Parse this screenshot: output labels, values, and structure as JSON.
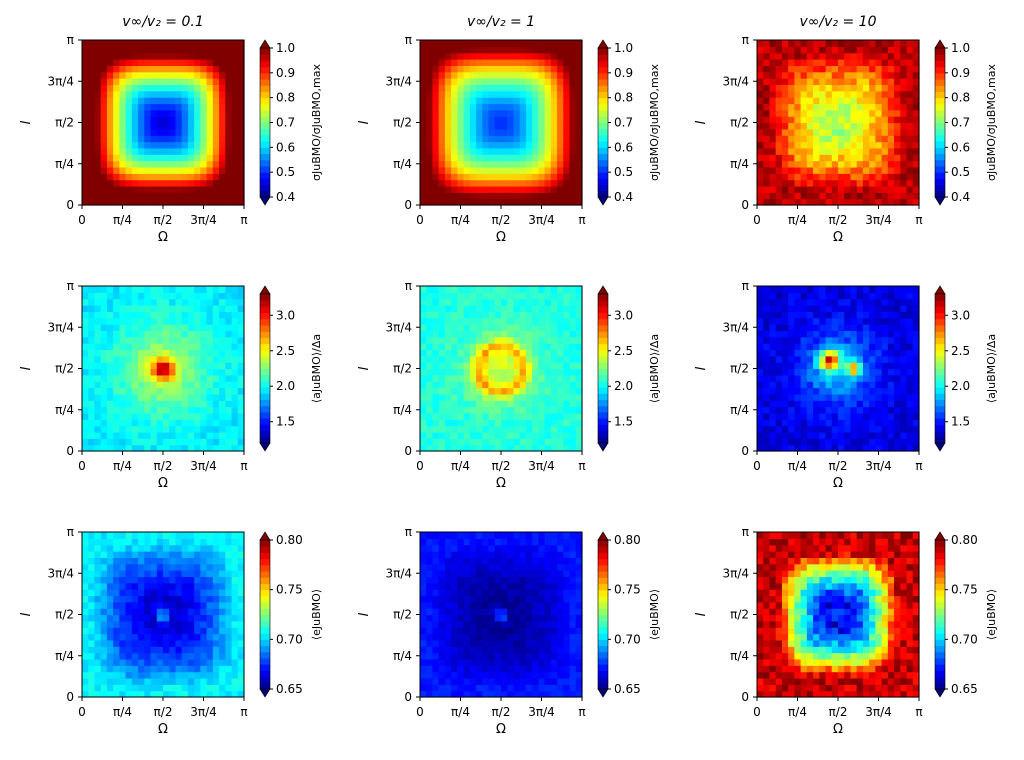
{
  "chart_data": [
    {
      "type": "heatmap",
      "panel": "r0c0",
      "title": "v∞/v₂ = 0.1",
      "xlabel": "Ω",
      "ylabel": "I",
      "xlim": [
        0,
        3.14159
      ],
      "ylim": [
        0,
        3.14159
      ],
      "xticks": [
        "0",
        "π/4",
        "π/2",
        "3π/4",
        "π"
      ],
      "yticks": [
        "0",
        "π/4",
        "π/2",
        "3π/4",
        "π"
      ],
      "colormap": "jet",
      "colorbar": {
        "label": "σJuBMO/σJuBMO,max",
        "min": 0.4,
        "max": 1.0,
        "ticks": [
          "0.4",
          "0.5",
          "0.6",
          "0.7",
          "0.8",
          "0.9",
          "1.0"
        ]
      },
      "pattern": {
        "kind": "radial",
        "center_value": 0.45,
        "edge_value": 1.0,
        "radius": 0.82,
        "noise": 0.0
      }
    },
    {
      "type": "heatmap",
      "panel": "r0c1",
      "title": "v∞/v₂ = 1",
      "xlabel": "Ω",
      "ylabel": "I",
      "xlim": [
        0,
        3.14159
      ],
      "ylim": [
        0,
        3.14159
      ],
      "xticks": [
        "0",
        "π/4",
        "π/2",
        "3π/4",
        "π"
      ],
      "yticks": [
        "0",
        "π/4",
        "π/2",
        "3π/4",
        "π"
      ],
      "colormap": "jet",
      "colorbar": {
        "label": "σJuBMO/σJuBMO,max",
        "min": 0.4,
        "max": 1.0,
        "ticks": [
          "0.4",
          "0.5",
          "0.6",
          "0.7",
          "0.8",
          "0.9",
          "1.0"
        ]
      },
      "pattern": {
        "kind": "radial",
        "center_value": 0.5,
        "edge_value": 1.0,
        "radius": 0.9,
        "noise": 0.0
      }
    },
    {
      "type": "heatmap",
      "panel": "r0c2",
      "title": "v∞/v₂ = 10",
      "xlabel": "Ω",
      "ylabel": "I",
      "xlim": [
        0,
        3.14159
      ],
      "ylim": [
        0,
        3.14159
      ],
      "xticks": [
        "0",
        "π/4",
        "π/2",
        "3π/4",
        "π"
      ],
      "yticks": [
        "0",
        "π/4",
        "π/2",
        "3π/4",
        "π"
      ],
      "colormap": "jet",
      "colorbar": {
        "label": "σJuBMO/σJuBMO,max",
        "min": 0.4,
        "max": 1.0,
        "ticks": [
          "0.4",
          "0.5",
          "0.6",
          "0.7",
          "0.8",
          "0.9",
          "1.0"
        ]
      },
      "pattern": {
        "kind": "radial",
        "center_value": 0.72,
        "edge_value": 0.97,
        "radius": 0.85,
        "noise": 0.04
      }
    },
    {
      "type": "heatmap",
      "panel": "r1c0",
      "title": "",
      "xlabel": "Ω",
      "ylabel": "I",
      "xlim": [
        0,
        3.14159
      ],
      "ylim": [
        0,
        3.14159
      ],
      "xticks": [
        "0",
        "π/4",
        "π/2",
        "3π/4",
        "π"
      ],
      "yticks": [
        "0",
        "π/4",
        "π/2",
        "3π/4",
        "π"
      ],
      "colormap": "jet",
      "colorbar": {
        "label": "⟨aJuBMO⟩/Δa",
        "min": 1.2,
        "max": 3.3,
        "ticks": [
          "1.5",
          "2.0",
          "2.5",
          "3.0"
        ]
      },
      "pattern": {
        "kind": "peak",
        "base_value": 1.95,
        "peak_value": 3.2,
        "peak_radius": 0.2,
        "halo_value": 2.35,
        "halo_radius": 0.55,
        "noise": 0.08
      }
    },
    {
      "type": "heatmap",
      "panel": "r1c1",
      "title": "",
      "xlabel": "Ω",
      "ylabel": "I",
      "xlim": [
        0,
        3.14159
      ],
      "ylim": [
        0,
        3.14159
      ],
      "xticks": [
        "0",
        "π/4",
        "π/2",
        "3π/4",
        "π"
      ],
      "yticks": [
        "0",
        "π/4",
        "π/2",
        "3π/4",
        "π"
      ],
      "colormap": "jet",
      "colorbar": {
        "label": "⟨aJuBMO⟩/Δa",
        "min": 1.2,
        "max": 3.3,
        "ticks": [
          "1.5",
          "2.0",
          "2.5",
          "3.0"
        ]
      },
      "pattern": {
        "kind": "ring",
        "base_value": 2.05,
        "ring_value": 2.8,
        "ring_radius": 0.14,
        "ring_width": 0.06,
        "halo_value": 2.4,
        "halo_radius": 0.45,
        "noise": 0.08
      }
    },
    {
      "type": "heatmap",
      "panel": "r1c2",
      "title": "",
      "xlabel": "Ω",
      "ylabel": "I",
      "xlim": [
        0,
        3.14159
      ],
      "ylim": [
        0,
        3.14159
      ],
      "xticks": [
        "0",
        "π/4",
        "π/2",
        "3π/4",
        "π"
      ],
      "yticks": [
        "0",
        "π/4",
        "π/2",
        "3π/4",
        "π"
      ],
      "colormap": "jet",
      "colorbar": {
        "label": "⟨aJuBMO⟩/Δa",
        "min": 1.2,
        "max": 3.3,
        "ticks": [
          "1.5",
          "2.0",
          "2.5",
          "3.0"
        ]
      },
      "pattern": {
        "kind": "blobs",
        "base_value": 1.4,
        "halo_value": 1.85,
        "halo_radius": 0.45,
        "blobs": [
          [
            0.45,
            0.55,
            3.2,
            0.06
          ],
          [
            0.6,
            0.5,
            3.0,
            0.04
          ]
        ],
        "noise": 0.1
      }
    },
    {
      "type": "heatmap",
      "panel": "r2c0",
      "title": "",
      "xlabel": "Ω",
      "ylabel": "I",
      "xlim": [
        0,
        3.14159
      ],
      "ylim": [
        0,
        3.14159
      ],
      "xticks": [
        "0",
        "π/4",
        "π/2",
        "3π/4",
        "π"
      ],
      "yticks": [
        "0",
        "π/4",
        "π/2",
        "3π/4",
        "π"
      ],
      "colormap": "jet",
      "colorbar": {
        "label": "⟨eJuBMO⟩",
        "min": 0.65,
        "max": 0.8,
        "ticks": [
          "0.65",
          "0.70",
          "0.75",
          "0.80"
        ]
      },
      "pattern": {
        "kind": "radial",
        "center_value": 0.66,
        "edge_value": 0.705,
        "radius": 0.9,
        "noise": 0.006,
        "center_spot": 0.7
      }
    },
    {
      "type": "heatmap",
      "panel": "r2c1",
      "title": "",
      "xlabel": "Ω",
      "ylabel": "I",
      "xlim": [
        0,
        3.14159
      ],
      "ylim": [
        0,
        3.14159
      ],
      "xticks": [
        "0",
        "π/4",
        "π/2",
        "3π/4",
        "π"
      ],
      "yticks": [
        "0",
        "π/4",
        "π/2",
        "3π/4",
        "π"
      ],
      "colormap": "jet",
      "colorbar": {
        "label": "⟨eJuBMO⟩",
        "min": 0.65,
        "max": 0.8,
        "ticks": [
          "0.65",
          "0.70",
          "0.75",
          "0.80"
        ]
      },
      "pattern": {
        "kind": "radial",
        "center_value": 0.652,
        "edge_value": 0.672,
        "radius": 0.9,
        "noise": 0.004,
        "center_spot": 0.69
      }
    },
    {
      "type": "heatmap",
      "panel": "r2c2",
      "title": "",
      "xlabel": "Ω",
      "ylabel": "I",
      "xlim": [
        0,
        3.14159
      ],
      "ylim": [
        0,
        3.14159
      ],
      "xticks": [
        "0",
        "π/4",
        "π/2",
        "3π/4",
        "π"
      ],
      "yticks": [
        "0",
        "π/4",
        "π/2",
        "3π/4",
        "π"
      ],
      "colormap": "jet",
      "colorbar": {
        "label": "⟨eJuBMO⟩",
        "min": 0.65,
        "max": 0.8,
        "ticks": [
          "0.65",
          "0.70",
          "0.75",
          "0.80"
        ]
      },
      "pattern": {
        "kind": "radial",
        "center_value": 0.655,
        "edge_value": 0.79,
        "radius": 0.75,
        "noise": 0.012,
        "center_spot": 0.7
      }
    }
  ]
}
